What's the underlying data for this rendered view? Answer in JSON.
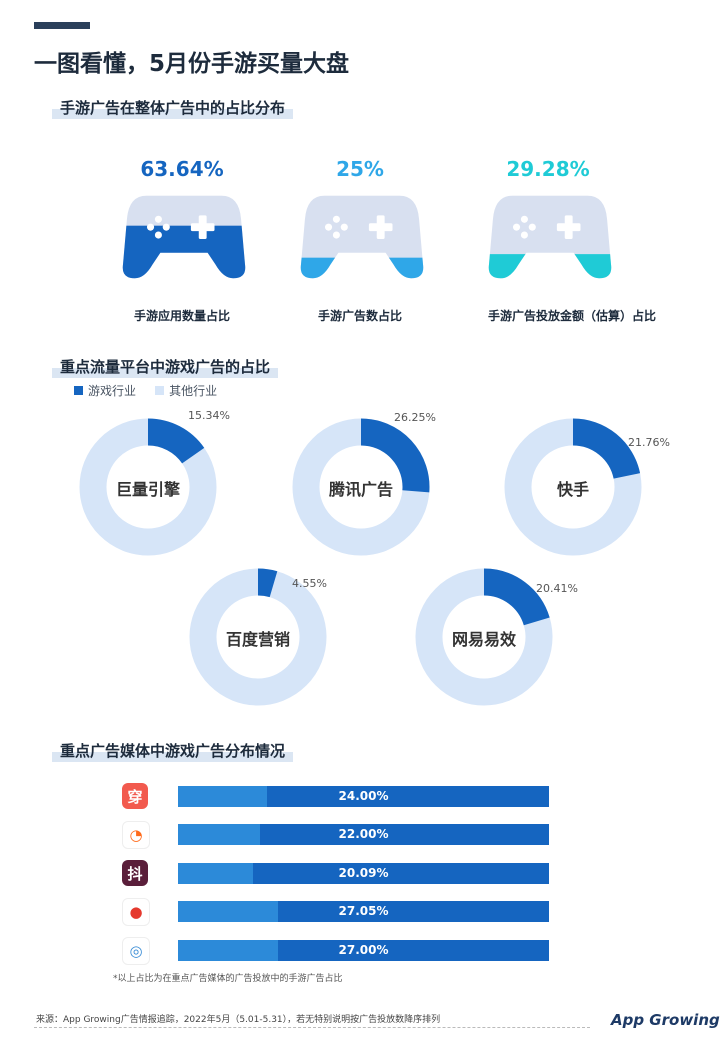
{
  "title": "一图看懂，5月份手游买量大盘",
  "section1": {
    "title": "手游广告在整体广告中的占比分布",
    "items": [
      {
        "pct_text": "63.64%",
        "value": 63.64,
        "label": "手游应用数量占比",
        "color": "#1565c0"
      },
      {
        "pct_text": "25%",
        "value": 25,
        "label": "手游广告数占比",
        "color": "#2fa7e8"
      },
      {
        "pct_text": "29.28%",
        "value": 29.28,
        "label": "手游广告投放金额（估算）占比",
        "color": "#1fcbd6"
      }
    ]
  },
  "section2": {
    "title": "重点流量平台中游戏广告的占比",
    "legend": {
      "game": "游戏行业",
      "other": "其他行业"
    },
    "colors": {
      "game": "#1565c0",
      "other": "#d6e5f8"
    },
    "chart_data": {
      "type": "pie",
      "series": [
        {
          "name": "巨量引擎",
          "pct_text": "15.34%",
          "value": 15.34
        },
        {
          "name": "腾讯广告",
          "pct_text": "26.25%",
          "value": 26.25
        },
        {
          "name": "快手",
          "pct_text": "21.76%",
          "value": 21.76
        },
        {
          "name": "百度营销",
          "pct_text": "4.55%",
          "value": 4.55
        },
        {
          "name": "网易易效",
          "pct_text": "20.41%",
          "value": 20.41
        }
      ]
    }
  },
  "section3": {
    "title": "重点广告媒体中游戏广告分布情况",
    "chart_data": {
      "type": "bar",
      "rows": [
        {
          "icon": "chuan-app-icon",
          "glyph": "穿",
          "bg": "#f25a4e",
          "fg": "#ffffff",
          "pct_text": "24.00%",
          "value": 24.0
        },
        {
          "icon": "orange-app-icon",
          "glyph": "◔",
          "bg": "#ffffff",
          "fg": "#ff6a1a",
          "pct_text": "22.00%",
          "value": 22.0
        },
        {
          "icon": "dou-app-icon",
          "glyph": "抖",
          "bg": "#5a1e3a",
          "fg": "#ffffff",
          "pct_text": "20.09%",
          "value": 20.09
        },
        {
          "icon": "tomato-app-icon",
          "glyph": "●",
          "bg": "#ffffff",
          "fg": "#e5392e",
          "pct_text": "27.05%",
          "value": 27.05
        },
        {
          "icon": "swirl-app-icon",
          "glyph": "◎",
          "bg": "#ffffff",
          "fg": "#3c8ed6",
          "pct_text": "27.00%",
          "value": 27.0
        }
      ]
    },
    "footnote": "*以上占比为在重点广告媒体的广告投放中的手游广告占比"
  },
  "footer": {
    "source": "来源：App Growing广告情报追踪，2022年5月（5.01-5.31），若无特别说明按广告投放数降序排列",
    "logo": "App Growing"
  }
}
